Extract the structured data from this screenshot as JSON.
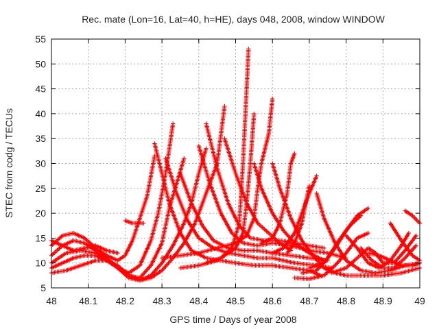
{
  "chart_data": {
    "type": "scatter",
    "title": "Rec. mate (Lon=16, Lat=40, h=HE), days 048, 2008, window WINDOW",
    "xlabel": "GPS time / Days of year 2008",
    "ylabel": "STEC from codg / TECUs",
    "xlim": [
      48,
      49
    ],
    "ylim": [
      5,
      55
    ],
    "xticks": [
      "48",
      "48.1",
      "48.2",
      "48.3",
      "48.4",
      "48.5",
      "48.6",
      "48.7",
      "48.8",
      "48.9",
      "49"
    ],
    "yticks": [
      "5",
      "10",
      "15",
      "20",
      "25",
      "30",
      "35",
      "40",
      "45",
      "50",
      "55"
    ],
    "grid": true,
    "marker": "plus",
    "color": "#ff0000",
    "series": [
      {
        "points": [
          [
            48.0,
            13.5
          ],
          [
            48.03,
            15.5
          ],
          [
            48.06,
            16.0
          ],
          [
            48.09,
            15.0
          ],
          [
            48.12,
            13.0
          ],
          [
            48.15,
            11.5
          ],
          [
            48.18,
            10.5
          ],
          [
            48.2,
            11.5
          ],
          [
            48.22,
            14.5
          ],
          [
            48.24,
            19.0
          ],
          [
            48.26,
            23.5
          ],
          [
            48.28,
            31.5
          ]
        ]
      },
      {
        "points": [
          [
            48.0,
            9.0
          ],
          [
            48.03,
            10.0
          ],
          [
            48.06,
            11.0
          ],
          [
            48.09,
            11.5
          ],
          [
            48.12,
            11.5
          ],
          [
            48.15,
            10.5
          ],
          [
            48.18,
            9.0
          ],
          [
            48.21,
            8.0
          ],
          [
            48.24,
            9.5
          ],
          [
            48.27,
            14.5
          ],
          [
            48.29,
            20.0
          ],
          [
            48.31,
            28.0
          ],
          [
            48.33,
            38.0
          ]
        ]
      },
      {
        "points": [
          [
            48.0,
            11.5
          ],
          [
            48.03,
            13.5
          ],
          [
            48.06,
            14.5
          ],
          [
            48.09,
            14.0
          ],
          [
            48.12,
            12.5
          ],
          [
            48.15,
            11.0
          ],
          [
            48.18,
            9.0
          ],
          [
            48.21,
            7.5
          ],
          [
            48.24,
            7.0
          ],
          [
            48.27,
            9.5
          ],
          [
            48.3,
            14.0
          ],
          [
            48.32,
            21.0
          ],
          [
            48.34,
            26.0
          ],
          [
            48.36,
            31.0
          ]
        ]
      },
      {
        "points": [
          [
            48.0,
            8.0
          ],
          [
            48.04,
            8.5
          ],
          [
            48.08,
            9.5
          ],
          [
            48.12,
            10.5
          ],
          [
            48.15,
            10.5
          ],
          [
            48.18,
            9.5
          ],
          [
            48.21,
            7.5
          ],
          [
            48.24,
            6.5
          ],
          [
            48.27,
            7.5
          ],
          [
            48.3,
            10.0
          ],
          [
            48.33,
            13.5
          ],
          [
            48.36,
            18.0
          ],
          [
            48.38,
            22.0
          ],
          [
            48.4,
            28.0
          ],
          [
            48.42,
            33.0
          ]
        ]
      },
      {
        "points": [
          [
            48.0,
            10.0
          ],
          [
            48.04,
            12.0
          ],
          [
            48.08,
            12.5
          ],
          [
            48.12,
            12.0
          ],
          [
            48.15,
            11.0
          ],
          [
            48.18,
            9.0
          ],
          [
            48.21,
            7.0
          ],
          [
            48.24,
            6.5
          ],
          [
            48.27,
            7.0
          ],
          [
            48.3,
            8.5
          ],
          [
            48.33,
            11.0
          ],
          [
            48.36,
            14.0
          ],
          [
            48.39,
            18.0
          ],
          [
            48.42,
            24.0
          ],
          [
            48.45,
            30.0
          ],
          [
            48.47,
            41.5
          ]
        ]
      },
      {
        "points": [
          [
            48.0,
            14.5
          ],
          [
            48.03,
            13.5
          ],
          [
            48.06,
            12.5
          ],
          [
            48.09,
            13.0
          ],
          [
            48.12,
            13.5
          ],
          [
            48.15,
            12.5
          ],
          [
            48.18,
            12.0
          ]
        ]
      },
      {
        "points": [
          [
            48.2,
            18.5
          ],
          [
            48.22,
            18.0
          ],
          [
            48.25,
            18.0
          ]
        ]
      },
      {
        "points": [
          [
            48.28,
            34.0
          ],
          [
            48.3,
            28.0
          ],
          [
            48.32,
            22.0
          ],
          [
            48.35,
            16.0
          ],
          [
            48.38,
            12.5
          ],
          [
            48.42,
            11.0
          ],
          [
            48.46,
            10.5
          ],
          [
            48.5,
            10.0
          ],
          [
            48.55,
            9.5
          ],
          [
            48.6,
            9.5
          ],
          [
            48.65,
            9.0
          ],
          [
            48.7,
            8.5
          ],
          [
            48.73,
            7.5
          ]
        ]
      },
      {
        "points": [
          [
            48.31,
            31.0
          ],
          [
            48.34,
            24.0
          ],
          [
            48.37,
            18.5
          ],
          [
            48.4,
            15.0
          ],
          [
            48.44,
            13.0
          ],
          [
            48.48,
            12.0
          ],
          [
            48.52,
            11.5
          ],
          [
            48.56,
            11.0
          ],
          [
            48.6,
            11.0
          ],
          [
            48.66,
            10.0
          ],
          [
            48.72,
            9.5
          ],
          [
            48.76,
            9.0
          ]
        ]
      },
      {
        "points": [
          [
            48.35,
            28.0
          ],
          [
            48.38,
            22.0
          ],
          [
            48.41,
            17.5
          ],
          [
            48.44,
            14.5
          ],
          [
            48.48,
            13.0
          ],
          [
            48.52,
            12.5
          ],
          [
            48.56,
            12.5
          ],
          [
            48.6,
            12.0
          ],
          [
            48.65,
            11.5
          ],
          [
            48.7,
            11.0
          ],
          [
            48.75,
            10.5
          ]
        ]
      },
      {
        "points": [
          [
            48.4,
            33.5
          ],
          [
            48.43,
            26.0
          ],
          [
            48.46,
            20.0
          ],
          [
            48.49,
            16.0
          ],
          [
            48.52,
            14.0
          ],
          [
            48.56,
            13.5
          ],
          [
            48.6,
            14.0
          ],
          [
            48.65,
            13.5
          ],
          [
            48.7,
            12.5
          ],
          [
            48.75,
            12.0
          ],
          [
            48.8,
            11.0
          ]
        ]
      },
      {
        "points": [
          [
            48.42,
            38.0
          ],
          [
            48.45,
            29.0
          ],
          [
            48.48,
            22.0
          ],
          [
            48.51,
            17.5
          ],
          [
            48.54,
            15.0
          ],
          [
            48.58,
            14.5
          ],
          [
            48.62,
            14.5
          ],
          [
            48.66,
            14.0
          ],
          [
            48.7,
            13.5
          ],
          [
            48.74,
            13.0
          ]
        ]
      },
      {
        "points": [
          [
            48.3,
            11.0
          ],
          [
            48.35,
            11.5
          ],
          [
            48.4,
            12.0
          ],
          [
            48.45,
            13.0
          ],
          [
            48.5,
            14.0
          ],
          [
            48.53,
            15.5
          ],
          [
            48.55,
            19.0
          ],
          [
            48.56,
            25.0
          ],
          [
            48.57,
            30.0
          ],
          [
            48.58,
            33.0
          ],
          [
            48.59,
            36.0
          ],
          [
            48.6,
            43.0
          ]
        ]
      },
      {
        "points": [
          [
            48.35,
            9.0
          ],
          [
            48.4,
            9.5
          ],
          [
            48.45,
            10.5
          ],
          [
            48.5,
            13.0
          ],
          [
            48.52,
            16.0
          ],
          [
            48.53,
            22.0
          ],
          [
            48.54,
            30.0
          ],
          [
            48.55,
            40.0
          ]
        ]
      },
      {
        "points": [
          [
            48.42,
            10.0
          ],
          [
            48.46,
            11.0
          ],
          [
            48.49,
            13.0
          ],
          [
            48.51,
            18.0
          ],
          [
            48.52,
            30.0
          ],
          [
            48.53,
            45.0
          ],
          [
            48.535,
            53.0
          ]
        ]
      },
      {
        "points": [
          [
            48.47,
            35.0
          ],
          [
            48.5,
            28.0
          ],
          [
            48.53,
            22.0
          ],
          [
            48.56,
            18.0
          ],
          [
            48.59,
            16.0
          ],
          [
            48.62,
            14.0
          ],
          [
            48.65,
            12.5
          ]
        ]
      },
      {
        "points": [
          [
            48.55,
            30.0
          ],
          [
            48.57,
            25.0
          ],
          [
            48.6,
            20.0
          ],
          [
            48.63,
            16.5
          ],
          [
            48.66,
            14.0
          ],
          [
            48.7,
            12.0
          ],
          [
            48.74,
            10.5
          ]
        ]
      },
      {
        "points": [
          [
            48.6,
            30.0
          ],
          [
            48.62,
            25.0
          ],
          [
            48.65,
            19.0
          ],
          [
            48.68,
            14.5
          ],
          [
            48.71,
            11.5
          ],
          [
            48.74,
            9.0
          ],
          [
            48.77,
            8.0
          ],
          [
            48.8,
            7.5
          ],
          [
            48.85,
            7.5
          ],
          [
            48.9,
            7.5
          ],
          [
            48.95,
            8.0
          ],
          [
            49.0,
            9.0
          ]
        ]
      },
      {
        "points": [
          [
            48.57,
            14.0
          ],
          [
            48.6,
            15.0
          ],
          [
            48.62,
            18.0
          ],
          [
            48.64,
            24.0
          ],
          [
            48.65,
            30.0
          ],
          [
            48.66,
            32.0
          ]
        ]
      },
      {
        "points": [
          [
            48.6,
            12.0
          ],
          [
            48.63,
            13.0
          ],
          [
            48.66,
            16.0
          ],
          [
            48.68,
            20.0
          ],
          [
            48.7,
            24.0
          ],
          [
            48.72,
            27.5
          ]
        ]
      },
      {
        "points": [
          [
            48.64,
            12.0
          ],
          [
            48.66,
            14.0
          ],
          [
            48.68,
            18.0
          ],
          [
            48.69,
            22.0
          ],
          [
            48.7,
            25.5
          ]
        ]
      },
      {
        "points": [
          [
            48.72,
            24.0
          ],
          [
            48.74,
            19.0
          ],
          [
            48.77,
            14.0
          ],
          [
            48.8,
            10.5
          ],
          [
            48.84,
            8.5
          ],
          [
            48.88,
            8.0
          ],
          [
            48.92,
            8.5
          ],
          [
            48.96,
            9.5
          ],
          [
            49.0,
            10.0
          ]
        ]
      },
      {
        "points": [
          [
            48.66,
            7.0
          ],
          [
            48.7,
            6.8
          ],
          [
            48.74,
            7.5
          ],
          [
            48.77,
            9.5
          ],
          [
            48.8,
            12.0
          ],
          [
            48.83,
            15.0
          ],
          [
            48.86,
            16.0
          ]
        ]
      },
      {
        "points": [
          [
            48.68,
            8.0
          ],
          [
            48.72,
            8.5
          ],
          [
            48.75,
            11.0
          ],
          [
            48.78,
            14.5
          ],
          [
            48.81,
            17.5
          ],
          [
            48.84,
            19.5
          ]
        ]
      },
      {
        "points": [
          [
            48.7,
            9.0
          ],
          [
            48.74,
            10.0
          ],
          [
            48.77,
            13.0
          ],
          [
            48.8,
            16.5
          ],
          [
            48.83,
            19.5
          ],
          [
            48.86,
            21.0
          ]
        ]
      },
      {
        "points": [
          [
            48.76,
            8.0
          ],
          [
            48.8,
            9.0
          ],
          [
            48.83,
            11.0
          ],
          [
            48.86,
            13.0
          ],
          [
            48.88,
            12.0
          ],
          [
            48.9,
            10.0
          ],
          [
            48.93,
            10.0
          ],
          [
            48.96,
            12.5
          ],
          [
            48.99,
            15.5
          ]
        ]
      },
      {
        "points": [
          [
            48.8,
            15.5
          ],
          [
            48.83,
            13.0
          ],
          [
            48.86,
            10.0
          ],
          [
            48.89,
            9.0
          ],
          [
            48.92,
            10.5
          ],
          [
            48.95,
            13.5
          ],
          [
            48.97,
            16.0
          ]
        ]
      },
      {
        "points": [
          [
            48.84,
            13.0
          ],
          [
            48.87,
            10.5
          ],
          [
            48.9,
            9.0
          ],
          [
            48.93,
            9.0
          ],
          [
            48.96,
            11.0
          ],
          [
            48.99,
            13.5
          ]
        ]
      },
      {
        "points": [
          [
            48.92,
            18.0
          ],
          [
            48.95,
            14.5
          ],
          [
            48.98,
            11.5
          ],
          [
            49.0,
            10.5
          ]
        ]
      },
      {
        "points": [
          [
            48.96,
            20.5
          ],
          [
            48.98,
            19.5
          ],
          [
            49.0,
            18.0
          ]
        ]
      },
      {
        "points": [
          [
            48.86,
            12.0
          ],
          [
            48.89,
            11.5
          ],
          [
            48.92,
            10.5
          ],
          [
            48.95,
            9.5
          ],
          [
            48.98,
            9.5
          ],
          [
            49.0,
            10.0
          ]
        ]
      }
    ]
  }
}
